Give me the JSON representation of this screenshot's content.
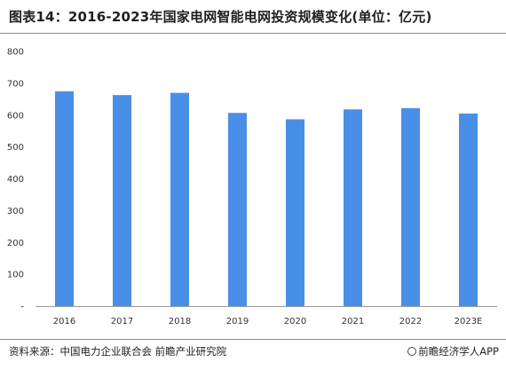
{
  "title": "图表14：2016-2023年国家电网智能电网投资规模变化(单位：亿元)",
  "colors": {
    "bar": "#4a8fe7",
    "axis": "#999999"
  },
  "chart_data": {
    "type": "bar",
    "categories": [
      "2016",
      "2017",
      "2018",
      "2019",
      "2020",
      "2021",
      "2022",
      "2023E"
    ],
    "values": [
      675,
      663,
      670,
      607,
      587,
      618,
      622,
      605
    ],
    "title": "",
    "xlabel": "",
    "ylabel": "",
    "ylim": [
      0,
      800
    ],
    "yticks": [
      "-",
      "100",
      "200",
      "300",
      "400",
      "500",
      "600",
      "700",
      "800"
    ],
    "grid": false,
    "legend": "none"
  },
  "footer": {
    "source": "资料来源：中国电力企业联合会 前瞻产业研究院",
    "brand": "前瞻经济学人APP",
    "brand_icon": "qianzhan-logo-icon"
  }
}
